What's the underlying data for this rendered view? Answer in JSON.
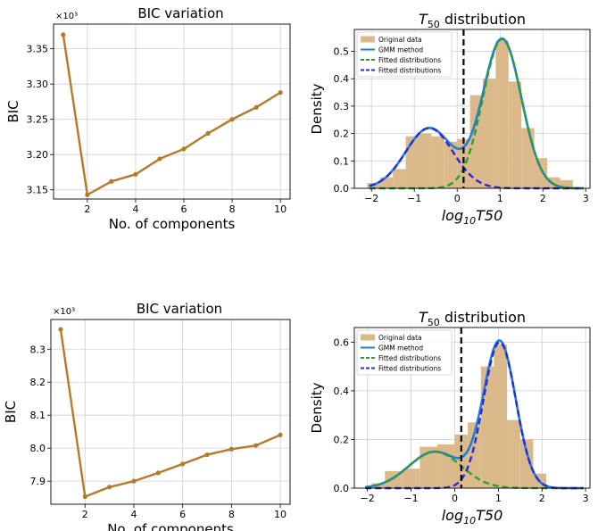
{
  "colors": {
    "bic_line": "#b8782a",
    "hist_fill": "#dcb98a",
    "gmm": "#1f7fd6",
    "fit_green": "#2ca02c",
    "fit_blue": "#2a2ad6",
    "vline": "#000000",
    "grid": "#cfcfcf"
  },
  "chart_data": [
    {
      "id": "bic_top",
      "type": "line",
      "title": "BIC variation",
      "xlabel": "No. of components",
      "ylabel": "BIC",
      "multiplier_label": "×10³",
      "xlim": [
        0.6,
        10.4
      ],
      "ylim": [
        3.137,
        3.385
      ],
      "xticks": [
        2,
        4,
        6,
        8,
        10
      ],
      "yticks": [
        3.15,
        3.2,
        3.25,
        3.3,
        3.35
      ],
      "ytick_labels": [
        "3.15",
        "3.20",
        "3.25",
        "3.30",
        "3.35"
      ],
      "grid": true,
      "x": [
        1,
        2,
        3,
        4,
        5,
        6,
        7,
        8,
        9,
        10
      ],
      "y": [
        3.37,
        3.143,
        3.162,
        3.172,
        3.194,
        3.208,
        3.23,
        3.25,
        3.267,
        3.288
      ]
    },
    {
      "id": "hist_top",
      "type": "histogram",
      "title_main": "T",
      "title_sub": "50",
      "title_rest": " distribution",
      "xlabel_main": "log",
      "xlabel_sub": "10",
      "xlabel_rest": "T50",
      "ylabel": "Density",
      "xlim": [
        -2.4,
        3.1
      ],
      "ylim": [
        0,
        0.58
      ],
      "xticks": [
        -2,
        -1,
        0,
        1,
        2,
        3
      ],
      "yticks": [
        0.0,
        0.1,
        0.2,
        0.3,
        0.4,
        0.5
      ],
      "ytick_labels": [
        "0.0",
        "0.1",
        "0.2",
        "0.3",
        "0.4",
        "0.5"
      ],
      "grid": true,
      "legend_position": "top-left",
      "legend": [
        "Original data",
        "GMM method",
        "Fitted distributions",
        "Fitted distributions"
      ],
      "vline_x": 0.15,
      "bins": [
        {
          "x0": -2.1,
          "x1": -1.8,
          "h": 0.02
        },
        {
          "x0": -1.8,
          "x1": -1.5,
          "h": 0.04
        },
        {
          "x0": -1.5,
          "x1": -1.2,
          "h": 0.07
        },
        {
          "x0": -1.2,
          "x1": -0.9,
          "h": 0.19
        },
        {
          "x0": -0.9,
          "x1": -0.6,
          "h": 0.2
        },
        {
          "x0": -0.6,
          "x1": -0.3,
          "h": 0.19
        },
        {
          "x0": -0.3,
          "x1": 0.0,
          "h": 0.17
        },
        {
          "x0": 0.0,
          "x1": 0.3,
          "h": 0.18
        },
        {
          "x0": 0.3,
          "x1": 0.6,
          "h": 0.34
        },
        {
          "x0": 0.6,
          "x1": 0.9,
          "h": 0.4
        },
        {
          "x0": 0.9,
          "x1": 1.2,
          "h": 0.54
        },
        {
          "x0": 1.2,
          "x1": 1.5,
          "h": 0.39
        },
        {
          "x0": 1.5,
          "x1": 1.8,
          "h": 0.22
        },
        {
          "x0": 1.8,
          "x1": 2.1,
          "h": 0.11
        },
        {
          "x0": 2.1,
          "x1": 2.4,
          "h": 0.04
        },
        {
          "x0": 2.4,
          "x1": 2.7,
          "h": 0.03
        }
      ],
      "components": [
        {
          "mu": -0.65,
          "sigma": 0.55,
          "peak": 0.22,
          "style": "blue"
        },
        {
          "mu": 1.05,
          "sigma": 0.45,
          "peak": 0.545,
          "style": "green"
        }
      ]
    },
    {
      "id": "bic_bottom",
      "type": "line",
      "title": "BIC variation",
      "xlabel": "No. of components",
      "ylabel": "BIC",
      "multiplier_label": "×10³",
      "xlim": [
        0.6,
        10.4
      ],
      "ylim": [
        7.83,
        8.39
      ],
      "xticks": [
        2,
        4,
        6,
        8,
        10
      ],
      "yticks": [
        7.9,
        8.0,
        8.1,
        8.2,
        8.3
      ],
      "ytick_labels": [
        "7.9",
        "8.0",
        "8.1",
        "8.2",
        "8.3"
      ],
      "grid": true,
      "x": [
        1,
        2,
        3,
        4,
        5,
        6,
        7,
        8,
        9,
        10
      ],
      "y": [
        8.36,
        7.853,
        7.882,
        7.9,
        7.925,
        7.952,
        7.98,
        7.997,
        8.008,
        8.04
      ]
    },
    {
      "id": "hist_bottom",
      "type": "histogram",
      "title_main": "T",
      "title_sub": "50",
      "title_rest": " distribution",
      "xlabel_main": "log",
      "xlabel_sub": "10",
      "xlabel_rest": "T50",
      "ylabel": "Density",
      "xlim": [
        -2.3,
        3.1
      ],
      "ylim": [
        0,
        0.66
      ],
      "xticks": [
        -2,
        -1,
        0,
        1,
        2,
        3
      ],
      "yticks": [
        0.0,
        0.2,
        0.4,
        0.6
      ],
      "ytick_labels": [
        "0.0",
        "0.2",
        "0.4",
        "0.6"
      ],
      "grid": true,
      "legend_position": "top-left",
      "legend": [
        "Original data",
        "GMM method",
        "Fitted distributions",
        "Fitted distributions"
      ],
      "vline_x": 0.15,
      "bins": [
        {
          "x0": -1.9,
          "x1": -1.6,
          "h": 0.02
        },
        {
          "x0": -1.6,
          "x1": -1.2,
          "h": 0.07
        },
        {
          "x0": -1.2,
          "x1": -0.8,
          "h": 0.08
        },
        {
          "x0": -0.8,
          "x1": -0.4,
          "h": 0.17
        },
        {
          "x0": -0.4,
          "x1": 0.0,
          "h": 0.18
        },
        {
          "x0": 0.0,
          "x1": 0.3,
          "h": 0.22
        },
        {
          "x0": 0.3,
          "x1": 0.6,
          "h": 0.27
        },
        {
          "x0": 0.6,
          "x1": 0.9,
          "h": 0.5
        },
        {
          "x0": 0.9,
          "x1": 1.2,
          "h": 0.59
        },
        {
          "x0": 1.2,
          "x1": 1.5,
          "h": 0.28
        },
        {
          "x0": 1.5,
          "x1": 1.8,
          "h": 0.2
        },
        {
          "x0": 1.8,
          "x1": 2.1,
          "h": 0.06
        }
      ],
      "components": [
        {
          "mu": -0.45,
          "sigma": 0.6,
          "peak": 0.15,
          "style": "green"
        },
        {
          "mu": 1.03,
          "sigma": 0.37,
          "peak": 0.6,
          "style": "blue"
        }
      ]
    }
  ]
}
